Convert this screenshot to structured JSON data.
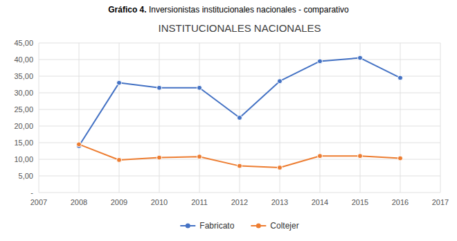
{
  "chart_data": {
    "type": "line",
    "title": "INSTITUCIONALES NACIONALES",
    "subtitle": "Gráfico 4. Inversionistas institucionales nacionales - comparativo",
    "x": [
      2008,
      2009,
      2010,
      2011,
      2012,
      2013,
      2014,
      2015,
      2016
    ],
    "series": [
      {
        "name": "Fabricato",
        "color": "#4472C4",
        "marker": "circle",
        "values": [
          14.0,
          33.0,
          31.5,
          31.5,
          22.5,
          33.5,
          39.5,
          40.5,
          34.5
        ]
      },
      {
        "name": "Coltejer",
        "color": "#ED7D31",
        "marker": "circle",
        "values": [
          14.5,
          9.8,
          10.5,
          10.8,
          8.0,
          7.5,
          11.0,
          11.0,
          10.3
        ]
      }
    ],
    "xlim": [
      2007,
      2017
    ],
    "xticks": [
      2007,
      2008,
      2009,
      2010,
      2011,
      2012,
      2013,
      2014,
      2015,
      2016,
      2017
    ],
    "ylim": [
      0,
      45
    ],
    "yticks": [
      {
        "value": 0,
        "label": "-"
      },
      {
        "value": 5,
        "label": "5,00"
      },
      {
        "value": 10,
        "label": "10,00"
      },
      {
        "value": 15,
        "label": "15,00"
      },
      {
        "value": 20,
        "label": "20,00"
      },
      {
        "value": 25,
        "label": "25,00"
      },
      {
        "value": 30,
        "label": "30,00"
      },
      {
        "value": 35,
        "label": "35,00"
      },
      {
        "value": 40,
        "label": "40,00"
      },
      {
        "value": 45,
        "label": "45,00"
      }
    ],
    "grid": true,
    "legend": "bottom"
  }
}
